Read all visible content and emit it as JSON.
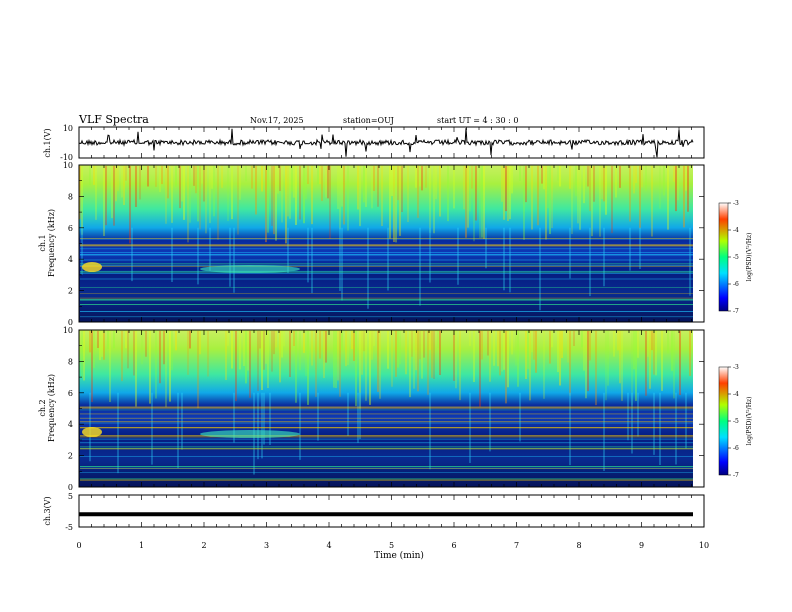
{
  "header": {
    "title": "VLF Spectra",
    "date": "Nov.17, 2025",
    "station": "station=OUJ",
    "start_ut": "start  UT =   4 : 30 : 0"
  },
  "chart_data": [
    {
      "type": "line",
      "panel": "ch1-waveform",
      "ylabel": "ch.1(V)",
      "ylim": [
        -10,
        10
      ],
      "y_ticks": [
        "10",
        "-10"
      ],
      "trace_level": 0
    },
    {
      "type": "heatmap",
      "panel": "ch1-spectrogram",
      "ylabel": "ch.1\nFrequency (kHz)",
      "ylim": [
        0,
        10
      ],
      "y_ticks": [
        "0",
        "2",
        "4",
        "6",
        "8",
        "10"
      ],
      "colorbar": {
        "label": "log(PSD)(V²/Hz)",
        "range": [
          -7,
          -3
        ],
        "ticks": [
          "-3",
          "-4",
          "-5",
          "-6",
          "-7"
        ]
      }
    },
    {
      "type": "heatmap",
      "panel": "ch2-spectrogram",
      "ylabel": "ch.2\nFrequency (kHz)",
      "ylim": [
        0,
        10
      ],
      "y_ticks": [
        "0",
        "2",
        "4",
        "6",
        "8",
        "10"
      ],
      "colorbar": {
        "label": "log(PSD)(V²/Hz)",
        "range": [
          -7,
          -3
        ],
        "ticks": [
          "-3",
          "-4",
          "-5",
          "-6",
          "-7"
        ]
      }
    },
    {
      "type": "line",
      "panel": "ch3-signal",
      "ylabel": "ch.3(V)",
      "ylim": [
        -5,
        5
      ],
      "y_ticks": [
        "5",
        "-5"
      ],
      "trace_level": -1
    }
  ],
  "x_axis": {
    "label": "Time (min)",
    "range": [
      0,
      10
    ],
    "ticks": [
      "0",
      "1",
      "2",
      "3",
      "4",
      "5",
      "6",
      "7",
      "8",
      "9",
      "10"
    ]
  }
}
